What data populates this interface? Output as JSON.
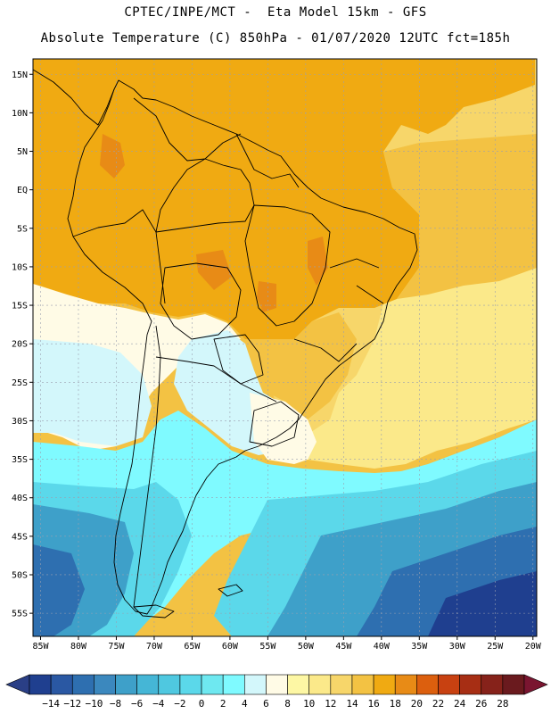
{
  "header": {
    "line1": "CPTEC/INPE/MCT -  Eta Model 15km - GFS",
    "line2": "Absolute Temperature (C) 850hPa - 01/07/2020 12UTC fct=185h"
  },
  "map": {
    "lon_range": [
      -86,
      -19.5
    ],
    "lat_range": [
      -58,
      17
    ],
    "lon_ticks": [
      "85W",
      "80W",
      "75W",
      "70W",
      "65W",
      "60W",
      "55W",
      "50W",
      "45W",
      "40W",
      "35W",
      "30W",
      "25W",
      "20W"
    ],
    "lat_ticks": [
      "15N",
      "10N",
      "5N",
      "EQ",
      "5S",
      "10S",
      "15S",
      "20S",
      "25S",
      "30S",
      "35S",
      "40S",
      "45S",
      "50S",
      "55S"
    ]
  },
  "colorbar": {
    "labels": [
      "-14",
      "-12",
      "-10",
      "-8",
      "-6",
      "-4",
      "-2",
      "0",
      "2",
      "4",
      "6",
      "8",
      "10",
      "12",
      "14",
      "16",
      "18",
      "20",
      "22",
      "24",
      "26",
      "28"
    ],
    "colors": [
      "#1f3f8f",
      "#2a58a3",
      "#2e6fb0",
      "#3b88be",
      "#3ea0c9",
      "#45b6d6",
      "#4fc8e0",
      "#5bd8ea",
      "#6ee8f0",
      "#7ffaff",
      "#d3f7fb",
      "#fffbe6",
      "#fdf7a4",
      "#fbe98a",
      "#f7d66a",
      "#f3c243",
      "#f0aa12",
      "#e88b16",
      "#dc5f0e",
      "#c84111",
      "#a72e14",
      "#86221a",
      "#6a1a1e"
    ],
    "under_color": "#2a3f86",
    "over_color": "#7a1530"
  },
  "bands": [
    {
      "name": "tropical",
      "color": "#f0aa12"
    },
    {
      "name": "warm-atlantic",
      "color": "#f3c243"
    },
    {
      "name": "mild-atlantic",
      "color": "#f7d66a"
    },
    {
      "name": "pale-yellow",
      "color": "#fbe98a"
    },
    {
      "name": "cream",
      "color": "#fffbe6"
    },
    {
      "name": "pale-cyan",
      "color": "#d3f7fb"
    },
    {
      "name": "cyan",
      "color": "#7ffaff"
    },
    {
      "name": "light-blue",
      "color": "#5bd8ea"
    },
    {
      "name": "mid-blue",
      "color": "#3ea0c9"
    },
    {
      "name": "deep-blue",
      "color": "#2e6fb0"
    },
    {
      "name": "darkest-blue",
      "color": "#1f3f8f"
    },
    {
      "name": "hot-spot",
      "color": "#e88b16"
    }
  ]
}
